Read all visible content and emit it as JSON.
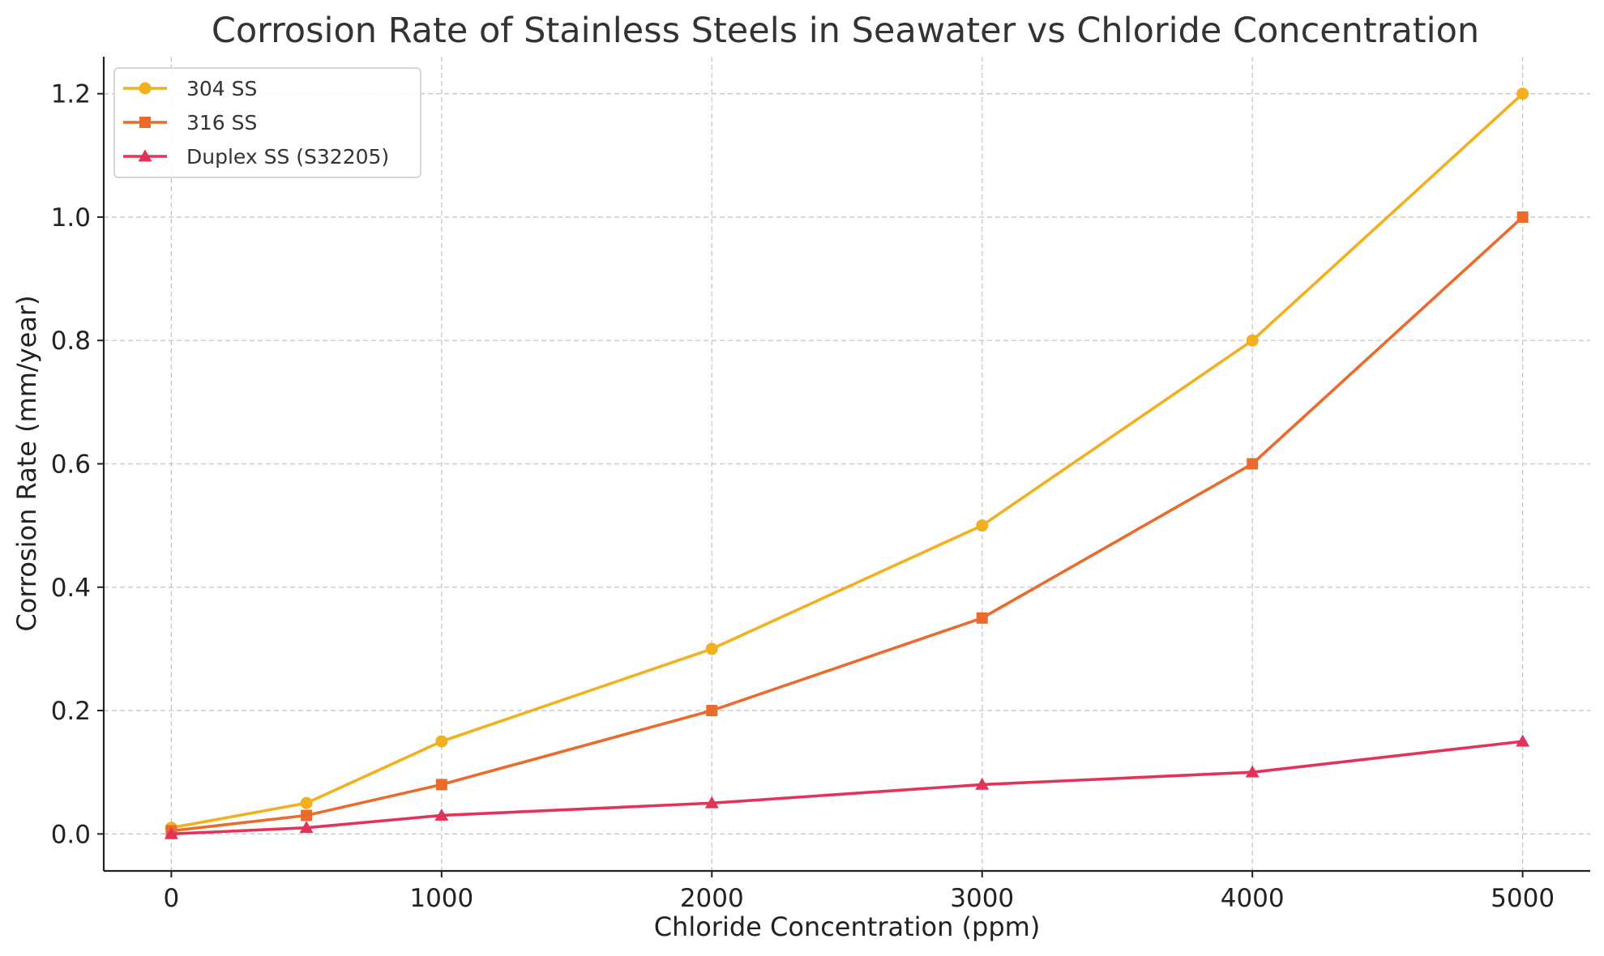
{
  "chart_data": {
    "type": "line",
    "title": "Corrosion Rate of Stainless Steels in Seawater vs Chloride Concentration",
    "xlabel": "Chloride Concentration (ppm)",
    "ylabel": "Corrosion Rate (mm/year)",
    "x": [
      0,
      500,
      1000,
      2000,
      3000,
      4000,
      5000
    ],
    "xlim": [
      -250,
      5250
    ],
    "ylim": [
      -0.06,
      1.26
    ],
    "xticks": [
      0,
      1000,
      2000,
      3000,
      4000,
      5000
    ],
    "xtick_labels": [
      "0",
      "1000",
      "2000",
      "3000",
      "4000",
      "5000"
    ],
    "yticks": [
      0.0,
      0.2,
      0.4,
      0.6,
      0.8,
      1.0,
      1.2
    ],
    "ytick_labels": [
      "0.0",
      "0.2",
      "0.4",
      "0.6",
      "0.8",
      "1.0",
      "1.2"
    ],
    "grid": true,
    "legend": "top-left",
    "series": [
      {
        "name": "304 SS",
        "color": "#f2b01e",
        "marker": "circle",
        "values": [
          0.01,
          0.05,
          0.15,
          0.3,
          0.5,
          0.8,
          1.2
        ]
      },
      {
        "name": "316 SS",
        "color": "#ea6b2c",
        "marker": "square",
        "values": [
          0.005,
          0.03,
          0.08,
          0.2,
          0.35,
          0.6,
          1.0
        ]
      },
      {
        "name": "Duplex SS (S32205)",
        "color": "#e43358",
        "marker": "triangle",
        "values": [
          0.0,
          0.01,
          0.03,
          0.05,
          0.08,
          0.1,
          0.15
        ]
      }
    ]
  }
}
